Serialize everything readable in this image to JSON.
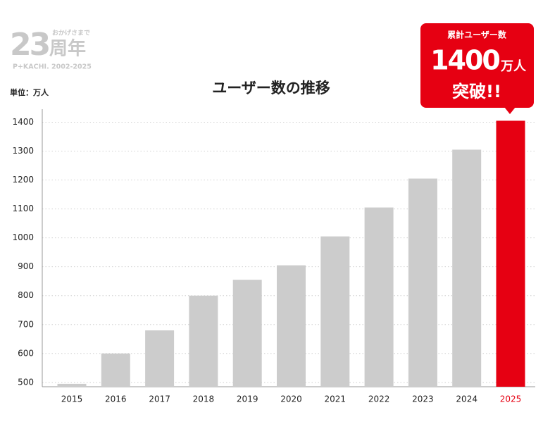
{
  "chart_data": {
    "type": "bar",
    "title": "ユーザー数の推移",
    "unit_label": "単位：万人",
    "logo": {
      "number": "23",
      "suffix": "周年",
      "tagline": "おかげさまで",
      "sub": "P+KACHI. 2002-2025"
    },
    "callout": {
      "heading": "累計ユーザー数",
      "figure": "1400",
      "figure_unit": "万人",
      "message": "突破!!"
    },
    "categories": [
      "2015",
      "2016",
      "2017",
      "2018",
      "2019",
      "2020",
      "2021",
      "2022",
      "2023",
      "2024",
      "2025"
    ],
    "values": [
      495,
      600,
      680,
      800,
      855,
      905,
      1005,
      1105,
      1205,
      1305,
      1405
    ],
    "colors": [
      "#cccccc",
      "#cccccc",
      "#cccccc",
      "#cccccc",
      "#cccccc",
      "#cccccc",
      "#cccccc",
      "#cccccc",
      "#cccccc",
      "#cccccc",
      "#e60012"
    ],
    "ylim": [
      485,
      1445
    ],
    "yticks": [
      500,
      600,
      700,
      800,
      900,
      1000,
      1100,
      1200,
      1300,
      1400
    ],
    "grid": true
  }
}
